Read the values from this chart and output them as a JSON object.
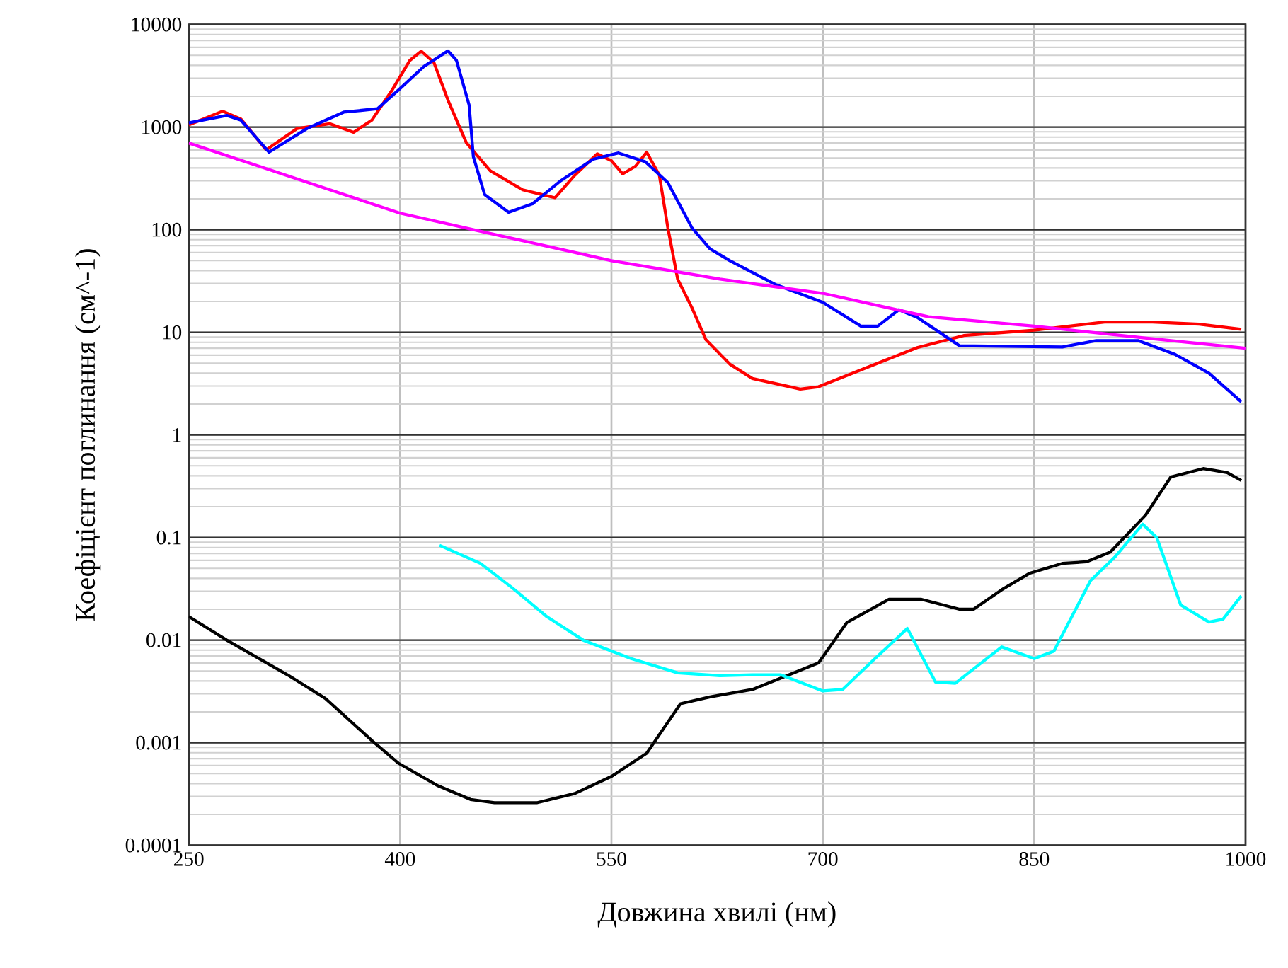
{
  "chart_data": {
    "type": "line",
    "xlabel": "Довжина хвилі (нм)",
    "ylabel": "Коефіцієнт поглинання (см^-1)",
    "log": "y",
    "grid": true,
    "xlim": [
      250,
      1000
    ],
    "ylim": [
      0.0001,
      10000
    ],
    "xticks": [
      250,
      400,
      550,
      700,
      850,
      1000
    ],
    "yticks": [
      0.0001,
      0.001,
      0.01,
      0.1,
      1,
      10,
      100,
      1000,
      10000
    ],
    "series": [
      {
        "color": "#ff0000",
        "x": [
          250,
          274,
          287,
          305,
          327,
          350,
          367,
          380,
          394,
          407,
          415,
          424,
          434,
          447,
          464,
          487,
          510,
          524,
          540,
          550,
          558,
          567,
          575,
          584,
          590,
          597,
          607,
          617,
          634,
          650,
          684,
          697,
          734,
          767,
          800,
          850,
          900,
          934,
          967,
          997
        ],
        "values": [
          1050,
          1430,
          1200,
          600,
          970,
          1080,
          890,
          1170,
          2260,
          4480,
          5500,
          4270,
          1830,
          705,
          375,
          245,
          205,
          340,
          550,
          470,
          350,
          415,
          570,
          340,
          105,
          33,
          17.5,
          8.5,
          4.9,
          3.55,
          2.8,
          2.95,
          4.7,
          7.1,
          9.3,
          10.5,
          12.6,
          12.6,
          12,
          10.7
        ]
      },
      {
        "color": "#0000ff",
        "x": [
          250,
          277,
          287,
          307,
          334,
          360,
          384,
          400,
          417,
          434,
          440,
          449,
          452,
          460,
          477,
          494,
          514,
          537,
          555,
          574,
          590,
          607,
          620,
          634,
          667,
          700,
          727,
          739,
          754,
          767,
          797,
          870,
          894,
          924,
          950,
          974,
          997
        ],
        "values": [
          1100,
          1300,
          1170,
          570,
          970,
          1400,
          1510,
          2380,
          3910,
          5540,
          4480,
          1640,
          515,
          220,
          148,
          179,
          300,
          487,
          560,
          460,
          288,
          105,
          65,
          50,
          29,
          19.6,
          11.5,
          11.5,
          16.6,
          14,
          7.4,
          7.2,
          8.3,
          8.3,
          6.1,
          4.0,
          2.1
        ]
      },
      {
        "color": "#ff00ff",
        "x": [
          250,
          300,
          400,
          475,
          550,
          627,
          700,
          775,
          850,
          925,
          1000
        ],
        "values": [
          700,
          415,
          145,
          85,
          50,
          33,
          24,
          14.2,
          11.5,
          8.9,
          7.0
        ]
      },
      {
        "color": "#000000",
        "x": [
          250,
          277,
          320,
          347,
          380,
          399,
          427,
          450,
          467,
          497,
          524,
          550,
          575,
          599,
          620,
          650,
          697,
          717,
          747,
          770,
          797,
          807,
          827,
          847,
          870,
          887,
          904,
          929,
          947,
          970,
          987,
          997
        ],
        "values": [
          0.017,
          0.01,
          0.0046,
          0.0027,
          0.00105,
          0.00063,
          0.00038,
          0.00028,
          0.00026,
          0.00026,
          0.00032,
          0.00047,
          0.00079,
          0.0024,
          0.0028,
          0.0033,
          0.006,
          0.0148,
          0.025,
          0.025,
          0.02,
          0.02,
          0.031,
          0.045,
          0.056,
          0.058,
          0.072,
          0.165,
          0.39,
          0.47,
          0.43,
          0.36
        ]
      },
      {
        "color": "#00ffff",
        "x": [
          428,
          457,
          480,
          504,
          530,
          564,
          597,
          627,
          650,
          670,
          700,
          714,
          737,
          760,
          780,
          794,
          827,
          850,
          864,
          890,
          907,
          927,
          937,
          954,
          974,
          984,
          997
        ],
        "values": [
          0.084,
          0.056,
          0.032,
          0.017,
          0.01,
          0.0066,
          0.0048,
          0.0045,
          0.0046,
          0.0046,
          0.0032,
          0.0033,
          0.0066,
          0.013,
          0.0039,
          0.0038,
          0.0086,
          0.0066,
          0.0078,
          0.038,
          0.064,
          0.135,
          0.1,
          0.022,
          0.015,
          0.016,
          0.027
        ]
      }
    ]
  }
}
